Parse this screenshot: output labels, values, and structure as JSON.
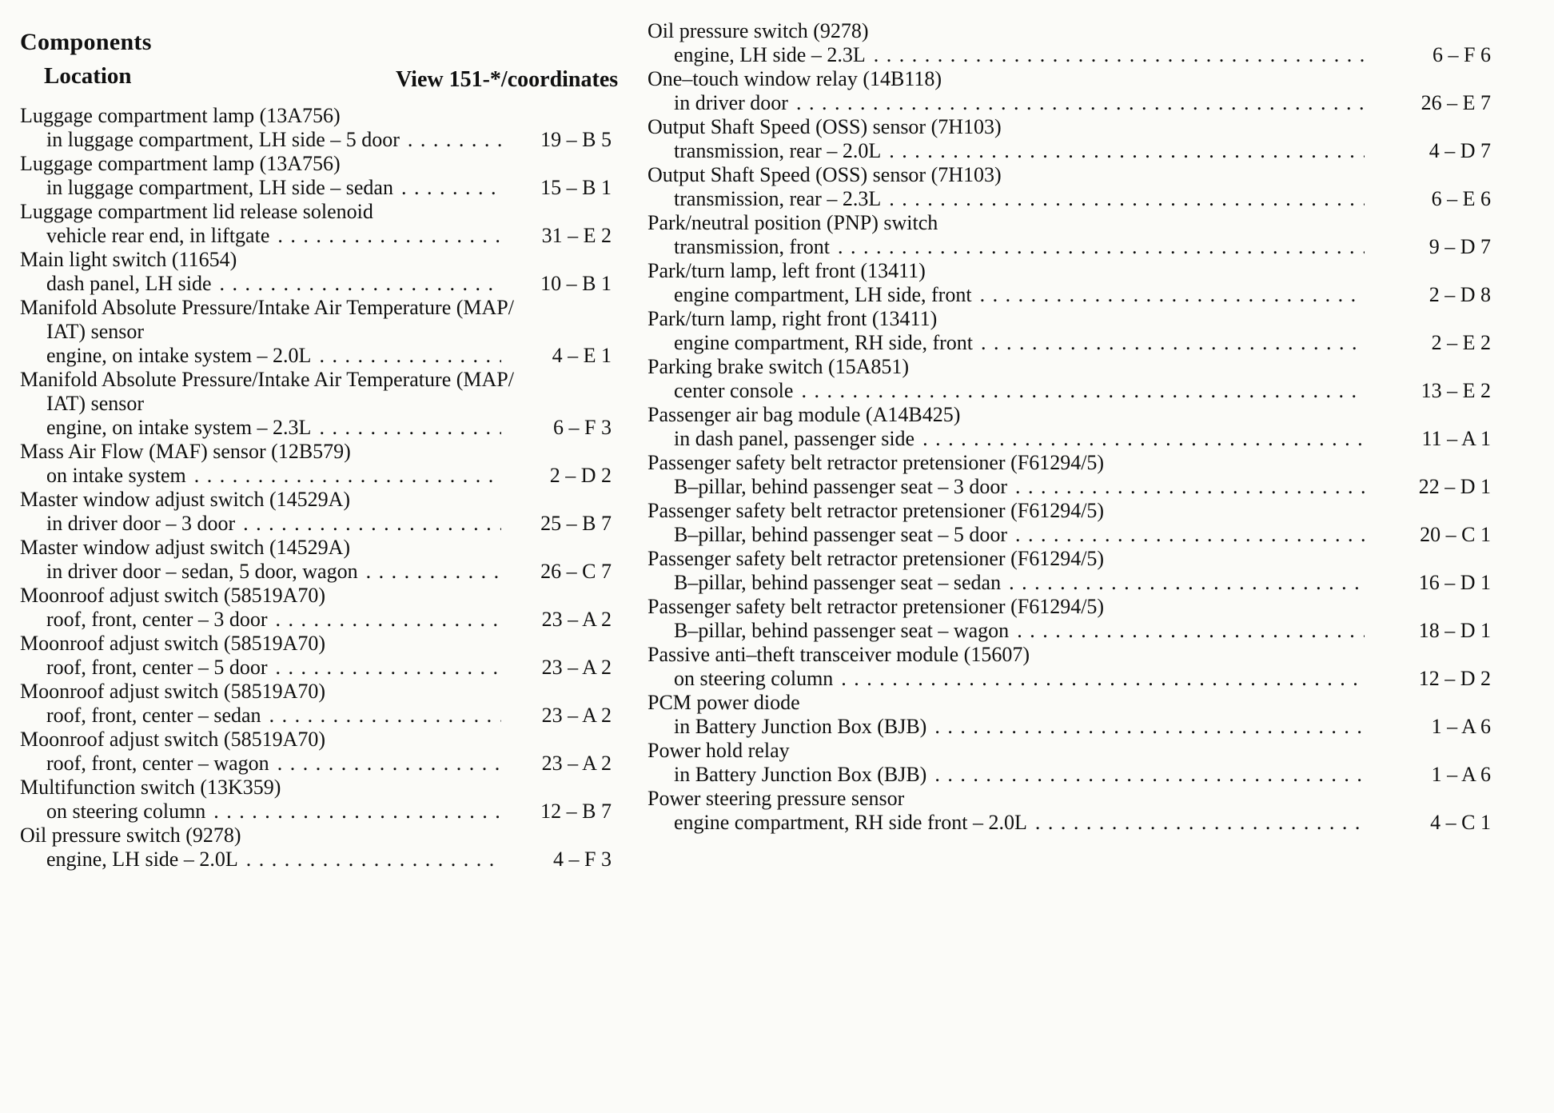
{
  "colors": {
    "paper": "#fbfbf8",
    "ink": "#101010"
  },
  "header": {
    "title": "Components",
    "subtitle": "Location",
    "view_label": "View 151-*/coordinates"
  },
  "columns": [
    {
      "entries": [
        {
          "name": "Luggage compartment lamp (13A756)",
          "location": "in luggage compartment, LH side – 5 door",
          "coord": "19 – B 5"
        },
        {
          "name": "Luggage compartment lamp (13A756)",
          "location": "in luggage compartment, LH side – sedan",
          "coord": "15 – B 1"
        },
        {
          "name": "Luggage compartment lid release solenoid",
          "location": "vehicle rear end, in liftgate",
          "coord": "31 – E 2"
        },
        {
          "name": "Main light switch (11654)",
          "location": "dash panel, LH side",
          "coord": "10 – B 1"
        },
        {
          "name": "Manifold Absolute Pressure/Intake Air Temperature (MAP/",
          "name2": "IAT) sensor",
          "location": "engine, on intake system – 2.0L",
          "coord": "4 – E 1"
        },
        {
          "name": "Manifold Absolute Pressure/Intake Air Temperature (MAP/",
          "name2": "IAT) sensor",
          "location": "engine, on intake system – 2.3L",
          "coord": "6 – F 3"
        },
        {
          "name": "Mass Air Flow (MAF) sensor (12B579)",
          "location": "on intake system",
          "coord": "2 – D 2"
        },
        {
          "name": "Master window adjust switch (14529A)",
          "location": "in driver door – 3 door",
          "coord": "25 – B 7"
        },
        {
          "name": "Master window adjust switch (14529A)",
          "location": "in driver door – sedan, 5 door, wagon",
          "coord": "26 – C 7"
        },
        {
          "name": "Moonroof adjust switch (58519A70)",
          "location": "roof, front, center – 3 door",
          "coord": "23 – A 2"
        },
        {
          "name": "Moonroof adjust switch (58519A70)",
          "location": "roof, front, center – 5 door",
          "coord": "23 – A 2"
        },
        {
          "name": "Moonroof adjust switch (58519A70)",
          "location": "roof, front, center – sedan",
          "coord": "23 – A 2"
        },
        {
          "name": "Moonroof adjust switch (58519A70)",
          "location": "roof, front, center – wagon",
          "coord": "23 – A 2"
        },
        {
          "name": "Multifunction switch (13K359)",
          "location": "on steering column",
          "coord": "12 – B 7"
        },
        {
          "name": "Oil pressure switch (9278)",
          "location": "engine, LH side – 2.0L",
          "coord": "4 – F 3"
        }
      ]
    },
    {
      "entries": [
        {
          "name": "Oil pressure switch (9278)",
          "location": "engine, LH side – 2.3L",
          "coord": "6 – F 6"
        },
        {
          "name": "One–touch window relay (14B118)",
          "location": "in driver door",
          "coord": "26 – E 7"
        },
        {
          "name": "Output Shaft Speed (OSS) sensor (7H103)",
          "location": "transmission, rear – 2.0L",
          "coord": "4 – D 7"
        },
        {
          "name": "Output Shaft Speed (OSS) sensor (7H103)",
          "location": "transmission, rear – 2.3L",
          "coord": "6 – E 6"
        },
        {
          "name": "Park/neutral position (PNP) switch",
          "location": "transmission, front",
          "coord": "9 – D 7"
        },
        {
          "name": "Park/turn lamp, left front (13411)",
          "location": "engine compartment, LH side, front",
          "coord": "2 – D 8"
        },
        {
          "name": "Park/turn lamp, right front (13411)",
          "location": "engine compartment, RH side, front",
          "coord": "2 – E 2"
        },
        {
          "name": "Parking brake switch (15A851)",
          "location": "center console",
          "coord": "13 – E 2"
        },
        {
          "name": "Passenger air bag module (A14B425)",
          "location": "in dash panel, passenger side",
          "coord": "11 – A 1"
        },
        {
          "name": "Passenger safety belt retractor pretensioner (F61294/5)",
          "location": "B–pillar, behind passenger seat – 3 door",
          "coord": "22 – D 1"
        },
        {
          "name": "Passenger safety belt retractor pretensioner (F61294/5)",
          "location": "B–pillar, behind passenger seat – 5 door",
          "coord": "20 – C 1"
        },
        {
          "name": "Passenger safety belt retractor pretensioner (F61294/5)",
          "location": "B–pillar, behind passenger seat – sedan",
          "coord": "16 – D 1"
        },
        {
          "name": "Passenger safety belt retractor pretensioner (F61294/5)",
          "location": "B–pillar, behind passenger seat – wagon",
          "coord": "18 – D 1"
        },
        {
          "name": "Passive anti–theft transceiver module (15607)",
          "location": "on steering column",
          "coord": "12 – D 2"
        },
        {
          "name": "PCM power diode",
          "location": "in Battery Junction Box (BJB)",
          "coord": "1 – A 6"
        },
        {
          "name": "Power hold relay",
          "location": "in Battery Junction Box (BJB)",
          "coord": "1 – A 6"
        },
        {
          "name": "Power steering pressure sensor",
          "location": "engine compartment, RH side front – 2.0L",
          "coord": "4 – C 1"
        }
      ]
    }
  ]
}
